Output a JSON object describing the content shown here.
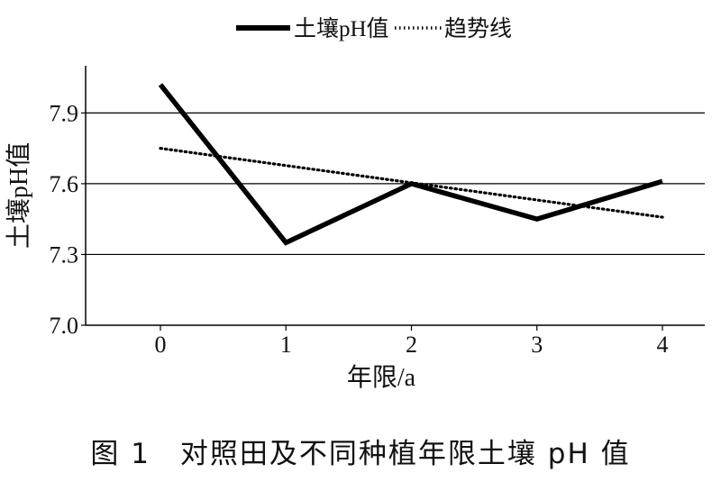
{
  "chart_data": {
    "type": "line",
    "categories": [
      "0",
      "1",
      "2",
      "3",
      "4"
    ],
    "x": [
      0,
      1,
      2,
      3,
      4
    ],
    "series": [
      {
        "name": "土壤pH值",
        "style": "solid",
        "values": [
          8.02,
          7.35,
          7.6,
          7.45,
          7.61
        ]
      },
      {
        "name": "趋势线",
        "style": "dotted",
        "values": [
          7.75,
          7.677,
          7.604,
          7.531,
          7.458
        ]
      }
    ],
    "xlabel": "年限/a",
    "ylabel": "土壤pH值",
    "ylim": [
      7.0,
      8.1
    ],
    "yticks": [
      "7.0",
      "7.3",
      "7.6",
      "7.9"
    ],
    "ytick_values": [
      7.0,
      7.3,
      7.6,
      7.9
    ],
    "grid": "horizontal",
    "legend_position": "top"
  },
  "caption": "图 1　对照田及不同种植年限土壤 pH 值",
  "colors": {
    "line": "#000000",
    "grid": "#000000"
  }
}
